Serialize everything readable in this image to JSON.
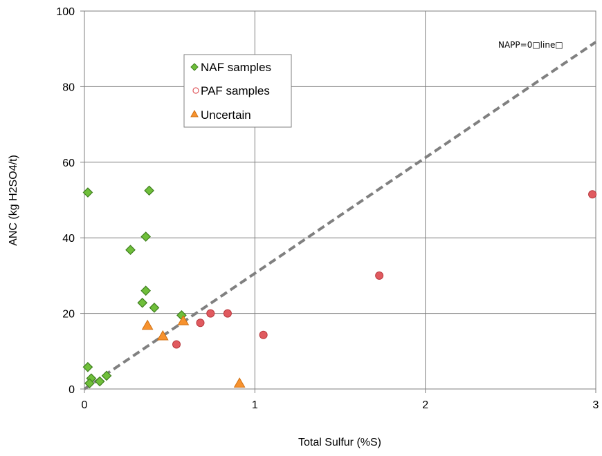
{
  "chart_data": {
    "type": "scatter",
    "xlabel": "Total Sulfur (%S)",
    "ylabel": "ANC (kg H2SO4/t)",
    "xlim": [
      0,
      3
    ],
    "ylim": [
      0,
      100
    ],
    "x_ticks": [
      0,
      1,
      2,
      3
    ],
    "y_ticks": [
      0,
      20,
      40,
      60,
      80,
      100
    ],
    "grid": true,
    "legend_position": "upper-left (inset)",
    "series": [
      {
        "name": "NAF samples",
        "marker": "diamond",
        "color": "#6fbf3a",
        "edge_color": "#3f7f1f",
        "points": [
          [
            0.02,
            52
          ],
          [
            0.38,
            52.5
          ],
          [
            0.36,
            40.3
          ],
          [
            0.27,
            36.8
          ],
          [
            0.36,
            26
          ],
          [
            0.34,
            22.8
          ],
          [
            0.41,
            21.5
          ],
          [
            0.57,
            19.5
          ],
          [
            0.02,
            5.8
          ],
          [
            0.04,
            2.8
          ],
          [
            0.03,
            1.5
          ],
          [
            0.09,
            2.0
          ],
          [
            0.13,
            3.5
          ]
        ]
      },
      {
        "name": "PAF samples",
        "marker": "circle",
        "color": "#e05a5f",
        "edge_color": "#b8383d",
        "points": [
          [
            2.98,
            51.5
          ],
          [
            1.73,
            30
          ],
          [
            1.05,
            14.3
          ],
          [
            0.84,
            20
          ],
          [
            0.74,
            20
          ],
          [
            0.68,
            17.5
          ],
          [
            0.54,
            11.8
          ]
        ]
      },
      {
        "name": "Uncertain",
        "marker": "triangle",
        "color": "#f7922e",
        "edge_color": "#d06f10",
        "points": [
          [
            0.37,
            16.8
          ],
          [
            0.46,
            14
          ],
          [
            0.58,
            18
          ],
          [
            0.91,
            1.5
          ]
        ]
      }
    ],
    "reference_line": {
      "label": "NAPP=0□line□",
      "style": "dashed",
      "color": "#808080",
      "slope_per_pctS": 30.6,
      "x_range": [
        0,
        3
      ]
    }
  }
}
